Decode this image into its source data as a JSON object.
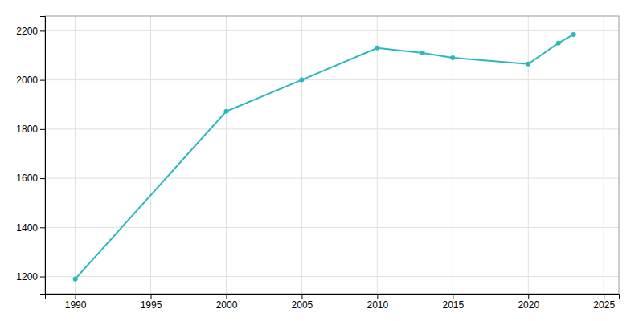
{
  "chart_data": {
    "type": "line",
    "x": [
      1990,
      2000,
      2005,
      2010,
      2013,
      2015,
      2020,
      2022,
      2023
    ],
    "values": [
      1190,
      1872,
      2000,
      2130,
      2110,
      2090,
      2065,
      2150,
      2185
    ],
    "color": "#2ab8c0",
    "marker": "circle",
    "xlim": [
      1988,
      2026
    ],
    "ylim": [
      1130,
      2260
    ],
    "xticks": [
      1990,
      1995,
      2000,
      2005,
      2010,
      2015,
      2020,
      2025
    ],
    "yticks": [
      1200,
      1400,
      1600,
      1800,
      2000,
      2200
    ],
    "grid": true
  }
}
